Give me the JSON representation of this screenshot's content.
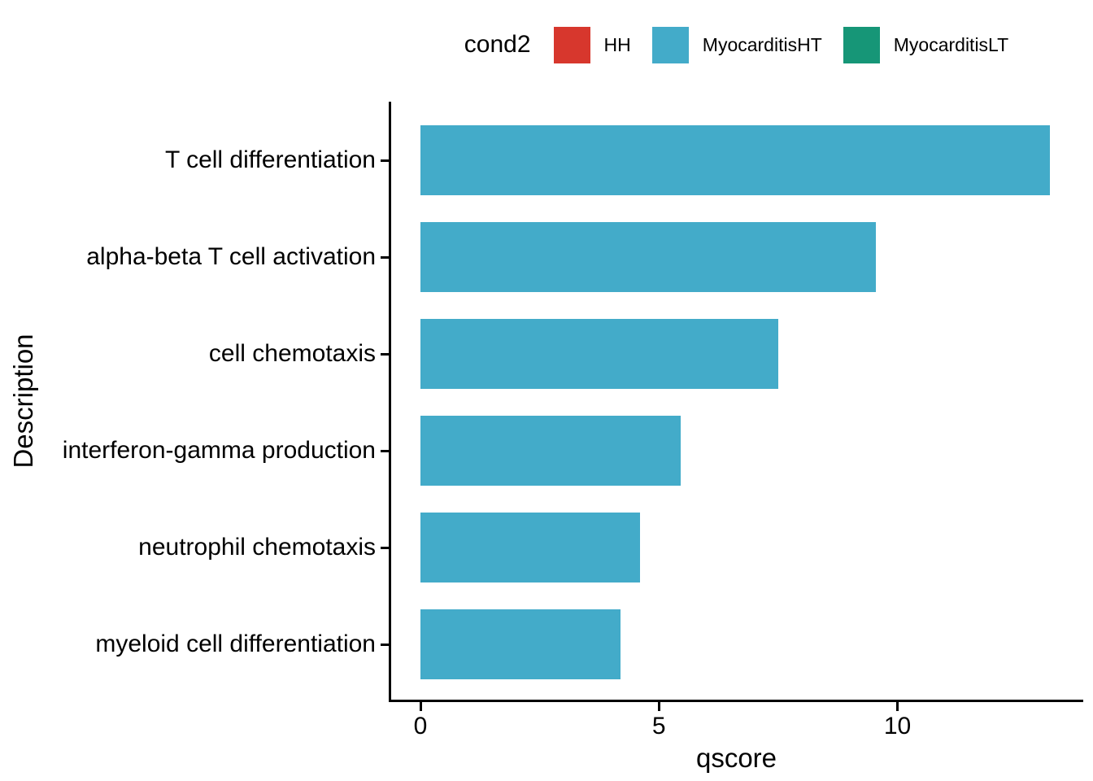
{
  "legend": {
    "title": "cond2",
    "items": [
      {
        "label": "HH",
        "color": "#D7372D"
      },
      {
        "label": "MyocarditisHT",
        "color": "#43ABC9"
      },
      {
        "label": "MyocarditisLT",
        "color": "#169677"
      }
    ]
  },
  "chart_data": {
    "type": "bar",
    "orientation": "horizontal",
    "title": "",
    "xlabel": "qscore",
    "ylabel": "Description",
    "categories": [
      "T cell differentiation",
      "alpha-beta T cell activation",
      "cell chemotaxis",
      "interferon-gamma production",
      "neutrophil chemotaxis",
      "myeloid cell differentiation"
    ],
    "values": [
      13.2,
      9.55,
      7.5,
      5.45,
      4.6,
      4.2
    ],
    "series": [
      {
        "name": "MyocarditisHT",
        "color": "#43ABC9",
        "values": [
          13.2,
          9.55,
          7.5,
          5.45,
          4.6,
          4.2
        ]
      }
    ],
    "bar_color": "#43ABC9",
    "x_ticks": [
      0,
      5,
      10
    ],
    "x_tick_labels": [
      "0",
      "5",
      "10"
    ],
    "xlim": [
      0,
      13.2
    ],
    "grid": false,
    "background": "#ffffff",
    "legend_position": "top"
  }
}
